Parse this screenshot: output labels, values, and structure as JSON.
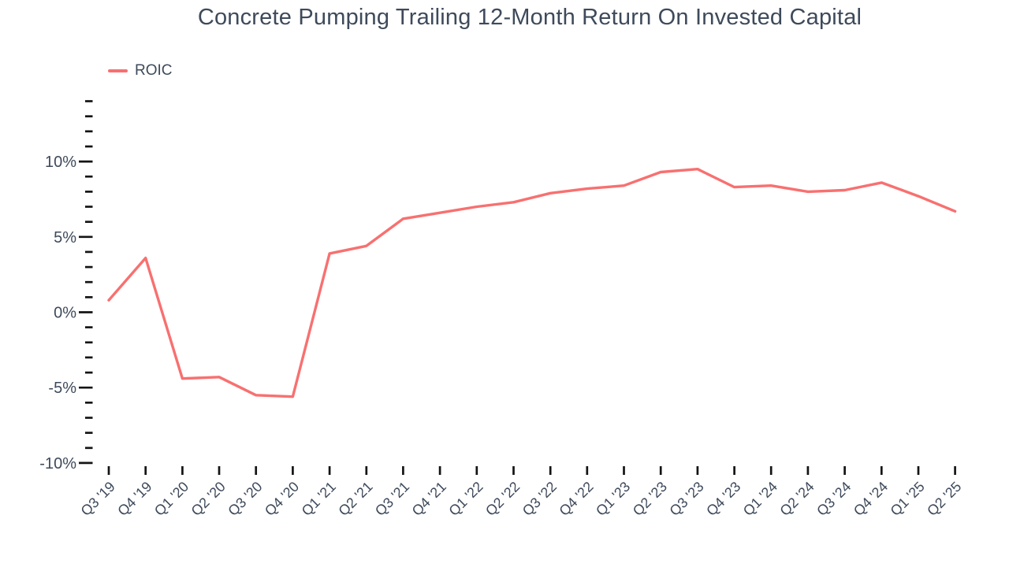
{
  "theme": {
    "background": "#ffffff",
    "text_color": "#3e4a5b",
    "tick_color": "#141414",
    "line_color": "#f87070"
  },
  "chart": {
    "title": "Concrete Pumping Trailing 12-Month Return On Invested Capital",
    "legend": {
      "label": "ROIC",
      "color": "#f87070"
    }
  },
  "chart_data": {
    "type": "line",
    "title": "Concrete Pumping Trailing 12-Month Return On Invested Capital",
    "unit": "%",
    "grid": false,
    "legend_position": "top-left",
    "x_label_rotation": -45,
    "ylim": [
      -10,
      14
    ],
    "y_minor_tick_step": 1,
    "y_major_tick_every": 5,
    "y_axis_tick_labels": [
      {
        "value": -10,
        "text": "-10%"
      },
      {
        "value": -5,
        "text": "-5%"
      },
      {
        "value": 0,
        "text": "0%"
      },
      {
        "value": 5,
        "text": "5%"
      },
      {
        "value": 10,
        "text": "10%"
      }
    ],
    "categories": [
      "Q3 '19",
      "Q4 '19",
      "Q1 '20",
      "Q2 '20",
      "Q3 '20",
      "Q4 '20",
      "Q1 '21",
      "Q2 '21",
      "Q3 '21",
      "Q4 '21",
      "Q1 '22",
      "Q2 '22",
      "Q3 '22",
      "Q4 '22",
      "Q1 '23",
      "Q2 '23",
      "Q3 '23",
      "Q4 '23",
      "Q1 '24",
      "Q2 '24",
      "Q3 '24",
      "Q4 '24",
      "Q1 '25",
      "Q2 '25"
    ],
    "series": [
      {
        "name": "ROIC",
        "color": "#f87070",
        "values": [
          0.8,
          3.6,
          -4.4,
          -4.3,
          -5.5,
          -5.6,
          3.9,
          4.4,
          6.2,
          6.6,
          7.0,
          7.3,
          7.9,
          8.2,
          8.4,
          9.3,
          9.5,
          8.3,
          8.4,
          8.0,
          8.1,
          8.6,
          7.7,
          6.7
        ]
      }
    ]
  }
}
